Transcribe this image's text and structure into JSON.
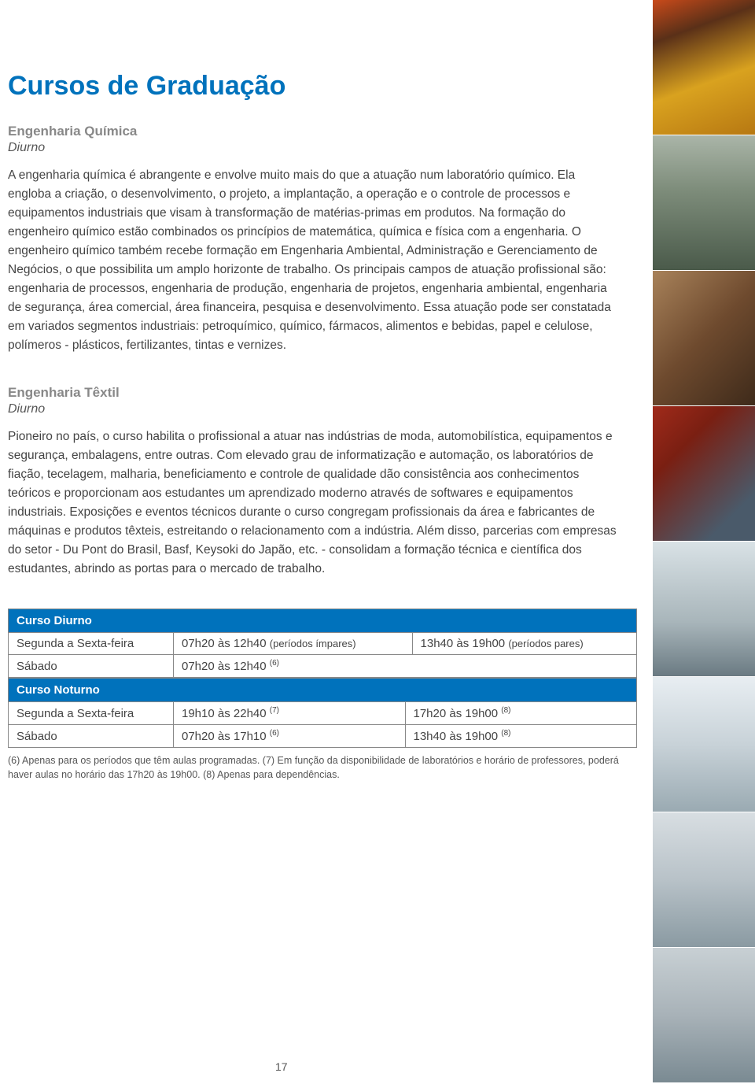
{
  "page_title": "Cursos de Graduação",
  "page_number": "17",
  "section1": {
    "heading": "Engenharia Química",
    "sub": "Diurno",
    "body": "A engenharia química é abrangente e envolve muito mais do que a atuação num laboratório químico. Ela engloba a criação, o desenvolvimento, o projeto, a implantação, a operação e o controle de processos e equipamentos industriais que visam à transformação de matérias-primas em produtos. Na formação do engenheiro químico estão combinados os princípios de matemática, química e física com a engenharia. O engenheiro químico também recebe formação em Engenharia Ambiental, Administração e Gerenciamento de Negócios, o que possibilita um amplo horizonte de trabalho. Os principais campos de atuação profissional são: engenharia de processos, engenharia de produção, engenharia de projetos, engenharia ambiental, engenharia de segurança, área comercial, área financeira, pesquisa e desenvolvimento. Essa atuação pode ser constatada em variados segmentos industriais: petroquímico, químico, fármacos, alimentos e bebidas, papel e celulose, polímeros - plásticos, fertilizantes, tintas e vernizes."
  },
  "section2": {
    "heading": "Engenharia Têxtil",
    "sub": "Diurno",
    "body": "Pioneiro no país, o curso habilita o profissional a atuar nas indústrias de moda, automobilística, equipamentos e segurança, embalagens, entre outras. Com elevado grau de informatização e automação, os laboratórios de fiação, tecelagem, malharia, beneficiamento e controle de qualidade dão consistência aos conhecimentos teóricos e proporcionam aos estudantes um aprendizado moderno através de softwares e equipamentos industriais. Exposições e eventos técnicos durante o curso congregam profissionais da área e fabricantes de máquinas e produtos têxteis, estreitando o relacionamento com a indústria. Além disso, parcerias com empresas do setor - Du Pont do Brasil, Basf, Keysoki do Japão, etc. - consolidam a formação técnica e científica dos estudantes, abrindo as portas para o mercado de trabalho."
  },
  "table1": {
    "title": "Curso Diurno",
    "rows": [
      {
        "c1": "Segunda a Sexta-feira",
        "c2": "07h20 às 12h40",
        "c2n": "(períodos ímpares)",
        "c3": "13h40 às 19h00",
        "c3n": "(períodos pares)"
      },
      {
        "c1": "Sábado",
        "c2": "07h20 às 12h40",
        "c2s": "(6)",
        "c3": "",
        "c3n": ""
      }
    ]
  },
  "table2": {
    "title": "Curso Noturno",
    "rows": [
      {
        "c1": "Segunda a Sexta-feira",
        "c2": "19h10 às 22h40",
        "c2s": "(7)",
        "c3": "17h20 às 19h00",
        "c3s": "(8)"
      },
      {
        "c1": "Sábado",
        "c2": "07h20 às 17h10",
        "c2s": "(6)",
        "c3": "13h40 às 19h00",
        "c3s": "(8)"
      }
    ]
  },
  "footnotes": "(6) Apenas para os períodos que têm aulas programadas. (7) Em função da disponibilidade de laboratórios e horário de professores, poderá haver aulas no horário das 17h20 às 19h00. (8) Apenas para dependências.",
  "colors": {
    "accent": "#0072bc",
    "grey_heading": "#888888",
    "body": "#444444"
  }
}
